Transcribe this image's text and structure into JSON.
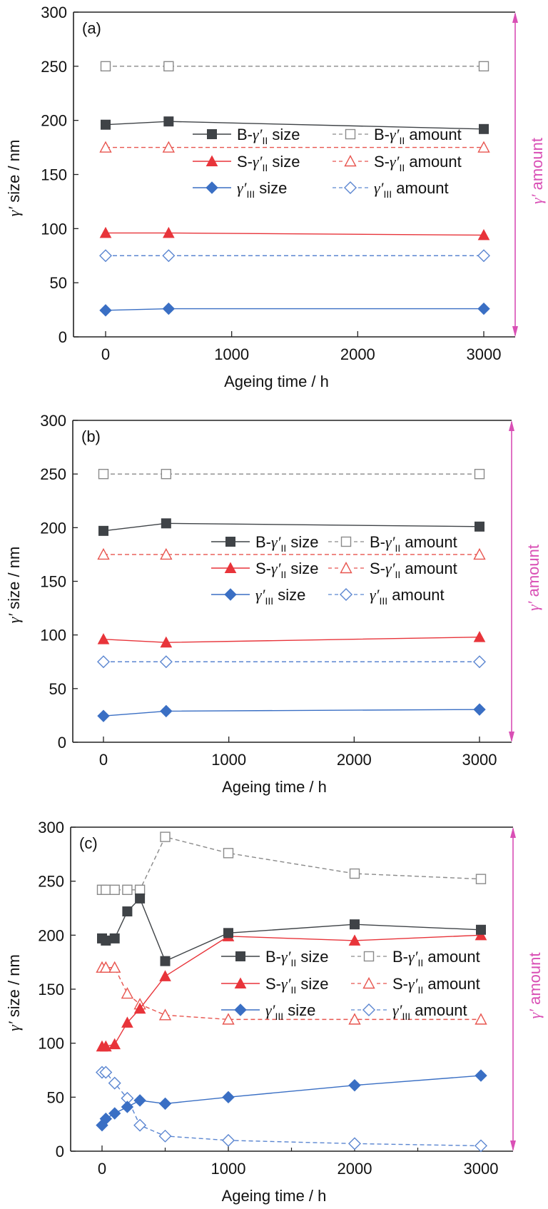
{
  "figure": {
    "accent_color": "#d94fb5",
    "series_styles": {
      "B_size": {
        "color": "#3f4347",
        "marker": "square-filled",
        "line": "solid"
      },
      "B_amount": {
        "color": "#8a8a8a",
        "marker": "square-open",
        "line": "dashed"
      },
      "S_size": {
        "color": "#e8343a",
        "marker": "triangle-filled",
        "line": "solid"
      },
      "S_amount": {
        "color": "#e8554f",
        "marker": "triangle-open",
        "line": "dashed"
      },
      "III_size": {
        "color": "#3a6fc4",
        "marker": "diamond-filled",
        "line": "solid"
      },
      "III_amount": {
        "color": "#5b86d1",
        "marker": "diamond-open",
        "line": "dashed"
      }
    },
    "legend_labels": {
      "B_size": {
        "prefix": "B-",
        "greek": "γ′",
        "sub": "II",
        "suffix": " size"
      },
      "S_size": {
        "prefix": "S-",
        "greek": "γ′",
        "sub": "II",
        "suffix": " size"
      },
      "III_size": {
        "prefix": "",
        "greek": "γ′",
        "sub": "III",
        "suffix": " size"
      },
      "B_amount": {
        "prefix": "B-",
        "greek": "γ′",
        "sub": "II",
        "suffix": " amount"
      },
      "S_amount": {
        "prefix": "S-",
        "greek": "γ′",
        "sub": "II",
        "suffix": " amount"
      },
      "III_amount": {
        "prefix": "",
        "greek": "γ′",
        "sub": "III",
        "suffix": " amount"
      }
    }
  },
  "chart_data": [
    {
      "type": "line",
      "panel": "(a)",
      "xlabel": "Ageing time / h",
      "ylabel": "γ′ size / nm",
      "right_axis_label": "γ′ amount",
      "xlim": [
        -250,
        3250
      ],
      "ylim": [
        0,
        300
      ],
      "xticks": [
        0,
        1000,
        2000,
        3000
      ],
      "yticks": [
        0,
        50,
        100,
        150,
        200,
        250,
        300
      ],
      "minor_xticks": [],
      "legend_position": "center-right",
      "series": [
        {
          "key": "B_size",
          "name": "B-γ′II size",
          "x": [
            0,
            500,
            3000
          ],
          "y": [
            196,
            199,
            192
          ]
        },
        {
          "key": "S_size",
          "name": "S-γ′II size",
          "x": [
            0,
            500,
            3000
          ],
          "y": [
            96,
            96,
            94
          ]
        },
        {
          "key": "III_size",
          "name": "γ′III size",
          "x": [
            0,
            500,
            3000
          ],
          "y": [
            24.5,
            26,
            26
          ]
        },
        {
          "key": "B_amount",
          "name": "B-γ′II amount",
          "x": [
            0,
            500,
            3000
          ],
          "y": [
            250,
            250,
            250
          ]
        },
        {
          "key": "S_amount",
          "name": "S-γ′II amount",
          "x": [
            0,
            500,
            3000
          ],
          "y": [
            175,
            175,
            175
          ]
        },
        {
          "key": "III_amount",
          "name": "γ′III amount",
          "x": [
            0,
            500,
            3000
          ],
          "y": [
            75,
            75,
            75
          ]
        }
      ]
    },
    {
      "type": "line",
      "panel": "(b)",
      "xlabel": "Ageing time / h",
      "ylabel": "γ′ size / nm",
      "right_axis_label": "γ′ amount",
      "xlim": [
        -250,
        3250
      ],
      "ylim": [
        0,
        300
      ],
      "xticks": [
        0,
        1000,
        2000,
        3000
      ],
      "yticks": [
        0,
        50,
        100,
        150,
        200,
        250,
        300
      ],
      "minor_xticks": [],
      "legend_position": "center-right",
      "series": [
        {
          "key": "B_size",
          "name": "B-γ′II size",
          "x": [
            0,
            500,
            3000
          ],
          "y": [
            197,
            204,
            201
          ]
        },
        {
          "key": "S_size",
          "name": "S-γ′II size",
          "x": [
            0,
            500,
            3000
          ],
          "y": [
            96,
            93,
            98
          ]
        },
        {
          "key": "III_size",
          "name": "γ′III size",
          "x": [
            0,
            500,
            3000
          ],
          "y": [
            24.5,
            29,
            30.5
          ]
        },
        {
          "key": "B_amount",
          "name": "B-γ′II amount",
          "x": [
            0,
            500,
            3000
          ],
          "y": [
            250,
            250,
            250
          ]
        },
        {
          "key": "S_amount",
          "name": "S-γ′II amount",
          "x": [
            0,
            500,
            3000
          ],
          "y": [
            175,
            175,
            175
          ]
        },
        {
          "key": "III_amount",
          "name": "γ′III amount",
          "x": [
            0,
            500,
            3000
          ],
          "y": [
            75,
            75,
            75
          ]
        }
      ]
    },
    {
      "type": "line",
      "panel": "(c)",
      "xlabel": "Ageing time / h",
      "ylabel": "γ′ size / nm",
      "right_axis_label": "γ′ amount",
      "xlim": [
        -250,
        3250
      ],
      "ylim": [
        0,
        300
      ],
      "xticks": [
        0,
        1000,
        2000,
        3000
      ],
      "yticks": [
        0,
        50,
        100,
        150,
        200,
        250,
        300
      ],
      "minor_xticks": [
        500,
        1500,
        2500
      ],
      "legend_position": "center-right",
      "series": [
        {
          "key": "B_size",
          "name": "B-γ′II size",
          "x": [
            0,
            30,
            100,
            200,
            300,
            500,
            1000,
            2000,
            3000
          ],
          "y": [
            197,
            195,
            197,
            222,
            234,
            176,
            202,
            210,
            205
          ]
        },
        {
          "key": "S_size",
          "name": "S-γ′II size",
          "x": [
            0,
            30,
            100,
            200,
            300,
            500,
            1000,
            2000,
            3000
          ],
          "y": [
            97,
            97,
            99,
            119,
            132,
            162,
            199,
            195,
            200
          ]
        },
        {
          "key": "III_size",
          "name": "γ′III size",
          "x": [
            0,
            30,
            100,
            200,
            300,
            500,
            1000,
            2000,
            3000
          ],
          "y": [
            24,
            30,
            35,
            41,
            47,
            44,
            50,
            61,
            70
          ]
        },
        {
          "key": "B_amount",
          "name": "B-γ′II amount",
          "x": [
            0,
            30,
            100,
            200,
            300,
            500,
            1000,
            2000,
            3000
          ],
          "y": [
            242,
            242,
            242,
            242,
            242,
            291,
            276,
            257,
            252
          ]
        },
        {
          "key": "S_amount",
          "name": "S-γ′II amount",
          "x": [
            0,
            30,
            100,
            200,
            300,
            500,
            1000,
            2000,
            3000
          ],
          "y": [
            170,
            170,
            170,
            146,
            136,
            126,
            122,
            122,
            122
          ]
        },
        {
          "key": "III_amount",
          "name": "γ′III amount",
          "x": [
            0,
            30,
            100,
            200,
            300,
            500,
            1000,
            2000,
            3000
          ],
          "y": [
            73,
            73,
            63,
            49,
            24,
            14,
            10,
            7,
            5
          ]
        }
      ]
    }
  ]
}
